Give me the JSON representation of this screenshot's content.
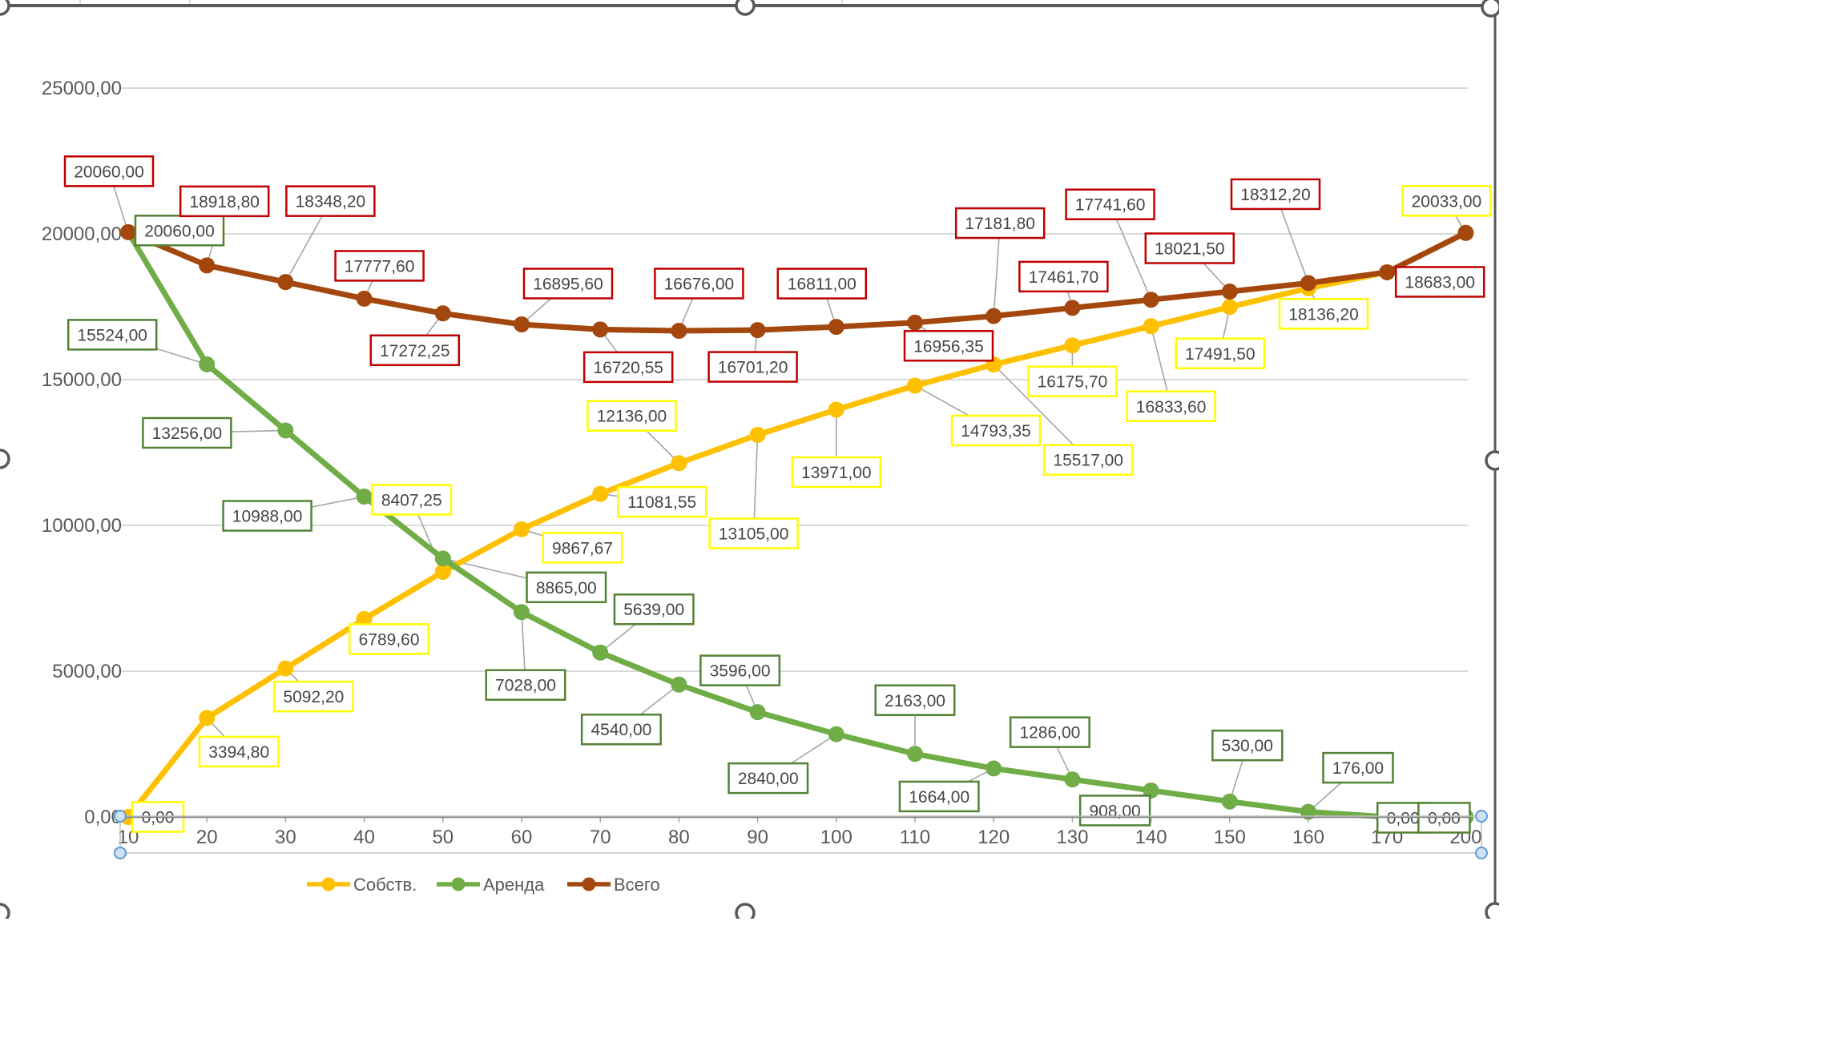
{
  "chart_data": {
    "type": "line",
    "title": "",
    "xlabel": "",
    "ylabel": "",
    "ylim": [
      0,
      25000
    ],
    "grid": true,
    "legend_position": "bottom",
    "categories": [
      "10",
      "20",
      "30",
      "40",
      "50",
      "60",
      "70",
      "80",
      "90",
      "100",
      "110",
      "120",
      "130",
      "140",
      "150",
      "160",
      "170",
      "200"
    ],
    "y_ticks": [
      "0,00",
      "5000,00",
      "10000,00",
      "15000,00",
      "20000,00",
      "25000,00"
    ],
    "series": [
      {
        "name": "Собств.",
        "color": "#FFC000",
        "label_border": "#FFFF00",
        "values": [
          0,
          3394.8,
          5092.2,
          6789.6,
          8407.25,
          9867.67,
          11081.55,
          12136.0,
          13105.0,
          13971.0,
          14793.35,
          15517.0,
          16175.7,
          16833.6,
          17491.5,
          18136.2,
          18683.0,
          20033.0
        ],
        "labels": [
          "0,00",
          "3394,80",
          "5092,20",
          "6789,60",
          "8407,25",
          "9867,67",
          "11081,55",
          "12136,00",
          "13105,00",
          "13971,00",
          "14793,35",
          "15517,00",
          "16175,70",
          "16833,60",
          "17491,50",
          "18136,20",
          null,
          "20033,00"
        ]
      },
      {
        "name": "Аренда",
        "color": "#70AD47",
        "label_border": "#548235",
        "values": [
          20060,
          15524,
          13256,
          10988,
          8865,
          7028,
          5639,
          4540,
          3596,
          2840,
          2163,
          1664,
          1286,
          908,
          530,
          176,
          0,
          0
        ],
        "labels": [
          "20060,00",
          "15524,00",
          "13256,00",
          "10988,00",
          "8865,00",
          "7028,00",
          "5639,00",
          "4540,00",
          "3596,00",
          "2840,00",
          "2163,00",
          "1664,00",
          "1286,00",
          "908,00",
          "530,00",
          "176,00",
          "0,00",
          "0,00"
        ]
      },
      {
        "name": "Всего",
        "color": "#A3470E",
        "label_border": "#C00000",
        "values": [
          20060,
          18918.8,
          18348.2,
          17777.6,
          17272.25,
          16895.6,
          16720.55,
          16676.0,
          16701.2,
          16811.0,
          16956.35,
          17181.8,
          17461.7,
          17741.6,
          18021.5,
          18312.2,
          18683.0,
          20033.0
        ],
        "labels": [
          "20060,00",
          "18918,80",
          "18348,20",
          "17777,60",
          "17272,25",
          "16895,60",
          "16720,55",
          "16676,00",
          "16701,20",
          "16811,00",
          "16956,35",
          "17181,80",
          "17461,70",
          "17741,60",
          "18021,50",
          "18312,20",
          "18683,00",
          null
        ]
      }
    ],
    "legend": [
      "Собств.",
      "Аренда",
      "Всего"
    ]
  }
}
